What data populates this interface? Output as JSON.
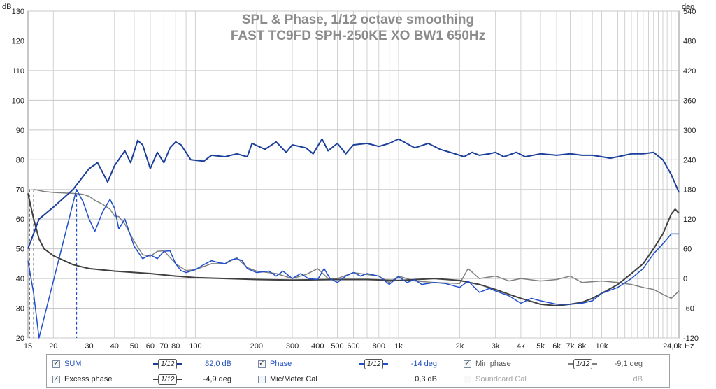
{
  "chart_data": {
    "type": "line",
    "title": "SPL & Phase, 1/12 octave smoothing",
    "subtitle": "FAST TC9FD SPH-250KE XO BW1 650Hz",
    "xlabel": "Hz",
    "ylabel_left": "dB",
    "ylabel_right": "deg",
    "x_scale": "log",
    "xlim": [
      15,
      24000
    ],
    "ylim_left": [
      20,
      130
    ],
    "ylim_right": [
      -120,
      540
    ],
    "grid": true,
    "x_ticks": [
      "15",
      "20",
      "30",
      "40",
      "50",
      "60",
      "70",
      "80",
      "100",
      "200",
      "300",
      "400",
      "500",
      "600",
      "800",
      "1k",
      "2k",
      "3k",
      "4k",
      "5k",
      "6k",
      "7k",
      "8k",
      "10k",
      "24,0k"
    ],
    "x_tick_values": [
      15,
      20,
      30,
      40,
      50,
      60,
      70,
      80,
      100,
      200,
      300,
      400,
      500,
      600,
      800,
      1000,
      2000,
      3000,
      4000,
      5000,
      6000,
      7000,
      8000,
      10000,
      24000
    ],
    "y_ticks_left": [
      20,
      30,
      40,
      50,
      60,
      70,
      80,
      90,
      100,
      110,
      120,
      130
    ],
    "y_ticks_right": [
      -120,
      -60,
      0,
      60,
      120,
      180,
      240,
      300,
      360,
      420,
      480,
      540
    ],
    "series": [
      {
        "name": "SUM",
        "axis": "left",
        "color": "#1b3f9a",
        "width": 2,
        "points": [
          [
            15,
            50
          ],
          [
            17,
            60
          ],
          [
            20,
            64
          ],
          [
            25,
            70
          ],
          [
            30,
            77
          ],
          [
            33,
            79
          ],
          [
            37,
            72.5
          ],
          [
            40,
            78
          ],
          [
            45,
            83
          ],
          [
            48,
            79
          ],
          [
            52,
            86.5
          ],
          [
            55,
            85
          ],
          [
            60,
            77
          ],
          [
            65,
            82.5
          ],
          [
            70,
            79
          ],
          [
            75,
            84
          ],
          [
            80,
            86
          ],
          [
            85,
            85
          ],
          [
            95,
            80
          ],
          [
            110,
            79.5
          ],
          [
            120,
            81.5
          ],
          [
            140,
            81
          ],
          [
            160,
            82
          ],
          [
            180,
            81
          ],
          [
            190,
            85.5
          ],
          [
            220,
            83.5
          ],
          [
            250,
            86
          ],
          [
            280,
            82.5
          ],
          [
            300,
            85
          ],
          [
            350,
            84
          ],
          [
            380,
            82
          ],
          [
            420,
            87
          ],
          [
            450,
            83
          ],
          [
            500,
            85.5
          ],
          [
            550,
            82
          ],
          [
            600,
            85
          ],
          [
            700,
            85.5
          ],
          [
            800,
            84.5
          ],
          [
            900,
            85.5
          ],
          [
            1000,
            87
          ],
          [
            1200,
            84
          ],
          [
            1400,
            85.5
          ],
          [
            1600,
            83.5
          ],
          [
            1900,
            82
          ],
          [
            2100,
            81
          ],
          [
            2300,
            82.5
          ],
          [
            2500,
            81.5
          ],
          [
            2800,
            82
          ],
          [
            3000,
            82.5
          ],
          [
            3300,
            81
          ],
          [
            3800,
            82.5
          ],
          [
            4200,
            81
          ],
          [
            5000,
            82
          ],
          [
            6000,
            81.5
          ],
          [
            7000,
            82
          ],
          [
            8000,
            81.5
          ],
          [
            9000,
            81.5
          ],
          [
            10000,
            81
          ],
          [
            11000,
            80.5
          ],
          [
            12000,
            81
          ],
          [
            14000,
            82
          ],
          [
            16000,
            82
          ],
          [
            18000,
            82.5
          ],
          [
            20000,
            80
          ],
          [
            22000,
            75
          ],
          [
            24000,
            69
          ]
        ]
      },
      {
        "name": "Phase",
        "axis": "right",
        "color": "#1f4fcc",
        "width": 1.5,
        "points": [
          [
            15,
            36
          ],
          [
            16,
            -30
          ],
          [
            17,
            -120
          ],
          [
            26,
            180
          ],
          [
            28,
            155
          ],
          [
            30,
            120
          ],
          [
            32,
            95
          ],
          [
            35,
            135
          ],
          [
            38,
            160
          ],
          [
            40,
            142
          ],
          [
            42,
            100
          ],
          [
            45,
            120
          ],
          [
            50,
            65
          ],
          [
            55,
            40
          ],
          [
            60,
            48
          ],
          [
            65,
            40
          ],
          [
            70,
            55
          ],
          [
            75,
            56
          ],
          [
            80,
            30
          ],
          [
            85,
            16
          ],
          [
            90,
            12
          ],
          [
            100,
            18
          ],
          [
            110,
            28
          ],
          [
            120,
            36
          ],
          [
            130,
            32
          ],
          [
            140,
            30
          ],
          [
            150,
            38
          ],
          [
            160,
            40
          ],
          [
            170,
            36
          ],
          [
            180,
            20
          ],
          [
            200,
            12
          ],
          [
            230,
            15
          ],
          [
            250,
            5
          ],
          [
            270,
            15
          ],
          [
            300,
            0
          ],
          [
            330,
            10
          ],
          [
            360,
            0
          ],
          [
            400,
            -2
          ],
          [
            430,
            20
          ],
          [
            460,
            0
          ],
          [
            500,
            -8
          ],
          [
            550,
            5
          ],
          [
            600,
            12
          ],
          [
            650,
            5
          ],
          [
            700,
            10
          ],
          [
            800,
            5
          ],
          [
            900,
            -12
          ],
          [
            1000,
            4
          ],
          [
            1100,
            -8
          ],
          [
            1200,
            -2
          ],
          [
            1300,
            -12
          ],
          [
            1500,
            -8
          ],
          [
            1700,
            -10
          ],
          [
            2000,
            -18
          ],
          [
            2200,
            -5
          ],
          [
            2500,
            -28
          ],
          [
            2800,
            -20
          ],
          [
            3000,
            -25
          ],
          [
            3500,
            -35
          ],
          [
            4000,
            -50
          ],
          [
            4500,
            -40
          ],
          [
            5000,
            -45
          ],
          [
            6000,
            -52
          ],
          [
            7000,
            -52
          ],
          [
            8000,
            -50
          ],
          [
            9000,
            -45
          ],
          [
            10000,
            -30
          ],
          [
            12000,
            -18
          ],
          [
            14000,
            0
          ],
          [
            16000,
            20
          ],
          [
            18000,
            50
          ],
          [
            20000,
            70
          ],
          [
            22000,
            90
          ],
          [
            24000,
            90
          ]
        ]
      },
      {
        "name": "Min phase",
        "axis": "right",
        "color": "#808080",
        "width": 1.5,
        "points": [
          [
            16,
            180
          ],
          [
            18,
            176
          ],
          [
            20,
            174
          ],
          [
            25,
            172
          ],
          [
            28,
            170
          ],
          [
            30,
            166
          ],
          [
            32,
            158
          ],
          [
            35,
            150
          ],
          [
            38,
            140
          ],
          [
            40,
            126
          ],
          [
            42,
            125
          ],
          [
            45,
            110
          ],
          [
            50,
            75
          ],
          [
            55,
            48
          ],
          [
            60,
            45
          ],
          [
            65,
            55
          ],
          [
            70,
            56
          ],
          [
            80,
            30
          ],
          [
            90,
            16
          ],
          [
            100,
            18
          ],
          [
            120,
            30
          ],
          [
            140,
            30
          ],
          [
            160,
            42
          ],
          [
            180,
            22
          ],
          [
            200,
            15
          ],
          [
            250,
            10
          ],
          [
            300,
            0
          ],
          [
            350,
            8
          ],
          [
            400,
            20
          ],
          [
            450,
            0
          ],
          [
            500,
            0
          ],
          [
            600,
            12
          ],
          [
            700,
            8
          ],
          [
            800,
            5
          ],
          [
            900,
            -8
          ],
          [
            1000,
            5
          ],
          [
            1200,
            -5
          ],
          [
            1500,
            -8
          ],
          [
            2000,
            -10
          ],
          [
            2200,
            20
          ],
          [
            2500,
            0
          ],
          [
            3000,
            5
          ],
          [
            3500,
            -5
          ],
          [
            4000,
            0
          ],
          [
            5000,
            -5
          ],
          [
            6000,
            -2
          ],
          [
            7000,
            5
          ],
          [
            8000,
            -8
          ],
          [
            10000,
            -5
          ],
          [
            12000,
            -8
          ],
          [
            14000,
            -12
          ],
          [
            16000,
            -18
          ],
          [
            18000,
            -22
          ],
          [
            20000,
            -32
          ],
          [
            22000,
            -40
          ],
          [
            24000,
            -25
          ]
        ]
      },
      {
        "name": "Excess phase",
        "axis": "right",
        "color": "#404040",
        "width": 2,
        "points": [
          [
            15,
            172
          ],
          [
            16,
            120
          ],
          [
            17,
            80
          ],
          [
            18,
            60
          ],
          [
            20,
            46
          ],
          [
            25,
            28
          ],
          [
            30,
            20
          ],
          [
            40,
            15
          ],
          [
            60,
            10
          ],
          [
            80,
            5
          ],
          [
            100,
            2
          ],
          [
            200,
            -2
          ],
          [
            300,
            -3
          ],
          [
            500,
            -2
          ],
          [
            700,
            -2
          ],
          [
            1000,
            -4
          ],
          [
            1500,
            0
          ],
          [
            2000,
            -4
          ],
          [
            2500,
            -12
          ],
          [
            3000,
            -22
          ],
          [
            3500,
            -32
          ],
          [
            4000,
            -40
          ],
          [
            5000,
            -52
          ],
          [
            6000,
            -55
          ],
          [
            7000,
            -52
          ],
          [
            8000,
            -48
          ],
          [
            9000,
            -40
          ],
          [
            10000,
            -30
          ],
          [
            12000,
            -12
          ],
          [
            14000,
            10
          ],
          [
            16000,
            30
          ],
          [
            18000,
            60
          ],
          [
            20000,
            90
          ],
          [
            22000,
            130
          ],
          [
            23000,
            140
          ],
          [
            24000,
            132
          ]
        ]
      }
    ],
    "markers": [
      {
        "x": 16,
        "color": "#808080",
        "dash": true
      },
      {
        "x": 26,
        "color": "#1f4fcc",
        "dash": true
      },
      {
        "x": 15,
        "color": "#404040",
        "dash": true
      }
    ]
  },
  "legend": {
    "items": [
      {
        "label": "SUM",
        "checked": true,
        "value": "82,0 dB",
        "enabled": true
      },
      {
        "label": "Phase",
        "checked": true,
        "value": "-14 deg",
        "enabled": true
      },
      {
        "label": "Min phase",
        "checked": true,
        "value": "-9,1 deg",
        "enabled": true
      },
      {
        "label": "Excess phase",
        "checked": true,
        "value": "-4,9 deg",
        "enabled": true
      },
      {
        "label": "Mic/Meter Cal",
        "checked": false,
        "value": "0,3 dB",
        "enabled": true
      },
      {
        "label": "Soundcard Cal",
        "checked": false,
        "value": "dB",
        "enabled": false
      }
    ],
    "smoothing_label": "1/12",
    "check_glyph": "✓"
  }
}
